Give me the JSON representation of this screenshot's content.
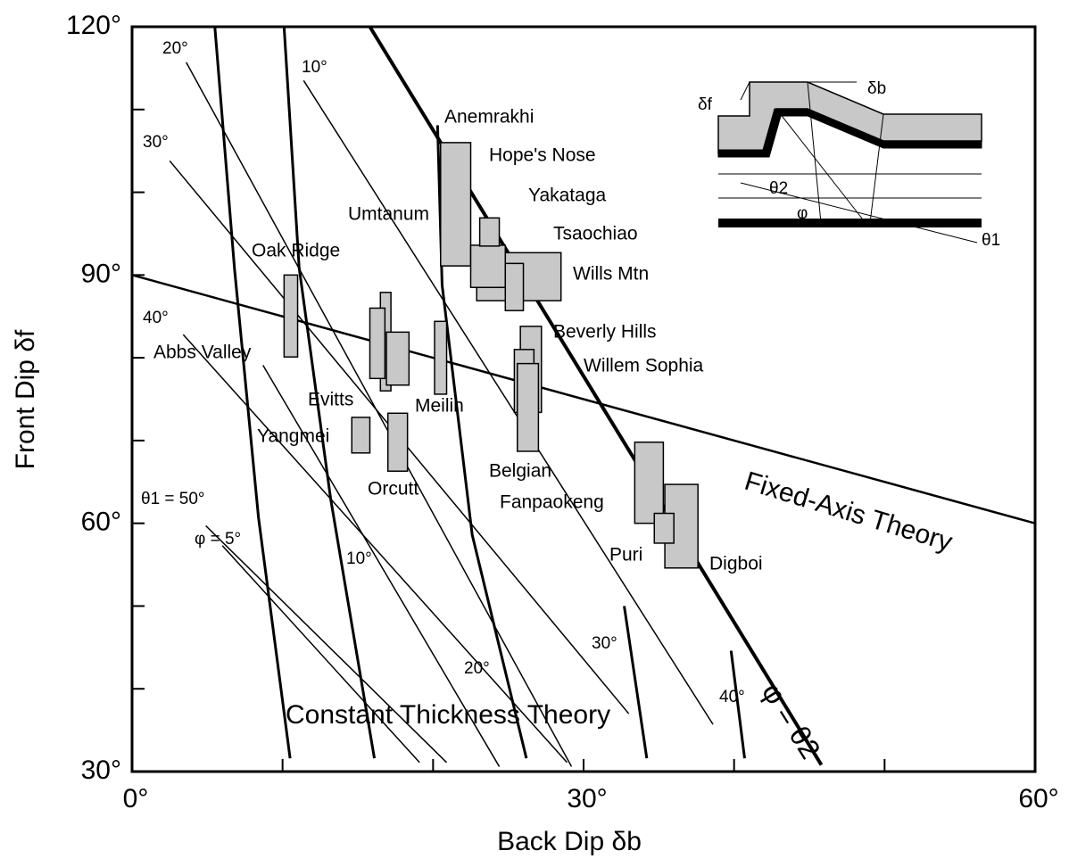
{
  "chart_data": {
    "type": "box-range",
    "xlabel": "Back Dip δb",
    "ylabel": "Front Dip δf",
    "xlim": [
      0,
      60
    ],
    "ylim": [
      30,
      120
    ],
    "xticks": [
      {
        "value": 0,
        "label": "0°"
      },
      {
        "value": 30,
        "label": "30°"
      },
      {
        "value": 60,
        "label": "60°"
      }
    ],
    "xminor_ticks": [
      10,
      20,
      40,
      50
    ],
    "yticks": [
      {
        "value": 30,
        "label": "30°"
      },
      {
        "value": 60,
        "label": "60°"
      },
      {
        "value": 90,
        "label": "90°"
      },
      {
        "value": 120,
        "label": "120°"
      }
    ],
    "yminor_ticks": [
      40,
      50,
      70,
      80,
      100,
      110
    ],
    "box_color": "#c8c8c8",
    "boxes": [
      {
        "x": [
          10.1,
          11.0
        ],
        "y": [
          80.1,
          90.0
        ]
      },
      {
        "x": [
          16.5,
          17.2
        ],
        "y": [
          76.0,
          87.9
        ]
      },
      {
        "x": [
          15.8,
          16.8
        ],
        "y": [
          77.5,
          86.0
        ]
      },
      {
        "x": [
          16.9,
          18.4
        ],
        "y": [
          76.7,
          83.1
        ]
      },
      {
        "x": [
          20.1,
          20.9
        ],
        "y": [
          75.6,
          84.4
        ]
      },
      {
        "x": [
          14.6,
          15.8
        ],
        "y": [
          68.5,
          72.8
        ]
      },
      {
        "x": [
          17.0,
          18.3
        ],
        "y": [
          66.3,
          73.3
        ]
      },
      {
        "x": [
          20.5,
          22.5
        ],
        "y": [
          91.1,
          106.0
        ]
      },
      {
        "x": [
          22.9,
          28.5
        ],
        "y": [
          86.9,
          92.7
        ]
      },
      {
        "x": [
          22.5,
          24.8
        ],
        "y": [
          88.5,
          93.6
        ]
      },
      {
        "x": [
          23.1,
          24.4
        ],
        "y": [
          93.5,
          96.9
        ]
      },
      {
        "x": [
          24.8,
          26.0
        ],
        "y": [
          85.7,
          91.4
        ]
      },
      {
        "x": [
          25.8,
          27.2
        ],
        "y": [
          73.4,
          83.8
        ]
      },
      {
        "x": [
          25.4,
          26.7
        ],
        "y": [
          73.4,
          81.0
        ]
      },
      {
        "x": [
          25.6,
          27.0
        ],
        "y": [
          68.7,
          79.3
        ]
      },
      {
        "x": [
          33.4,
          35.3
        ],
        "y": [
          60.0,
          69.8
        ]
      },
      {
        "x": [
          35.4,
          37.6
        ],
        "y": [
          54.6,
          64.7
        ]
      },
      {
        "x": [
          34.7,
          36.0
        ],
        "y": [
          57.6,
          61.2
        ]
      }
    ],
    "thick_lines": [
      {
        "x": [
          0,
          60
        ],
        "y": [
          90,
          60
        ]
      },
      {
        "x": [
          15.8,
          45.8
        ],
        "y": [
          120,
          30.8
        ]
      }
    ],
    "thin_lines": [
      {
        "x": [
          3.6,
          29.2
        ],
        "y": [
          115.7,
          30.6
        ]
      },
      {
        "x": [
          11.4,
          38.6
        ],
        "y": [
          113.5,
          35.7
        ]
      },
      {
        "x": [
          2.5,
          33.0
        ],
        "y": [
          103.8,
          37.0
        ]
      },
      {
        "x": [
          3.4,
          28.9
        ],
        "y": [
          82.8,
          31.1
        ]
      },
      {
        "x": [
          8.7,
          24.4
        ],
        "y": [
          79.1,
          30.6
        ]
      },
      {
        "x": [
          4.9,
          20.9
        ],
        "y": [
          59.7,
          31.1
        ]
      },
      {
        "x": [
          6.0,
          19.1
        ],
        "y": [
          57.3,
          31.1
        ]
      }
    ],
    "curves": [
      {
        "x": [
          5.5,
          6.8,
          8.4,
          10.5
        ],
        "y": [
          120,
          90.9,
          60.7,
          31.6
        ]
      },
      {
        "x": [
          10.1,
          11.1,
          13.2,
          16.1
        ],
        "y": [
          120,
          90.9,
          62.9,
          31.6
        ]
      },
      {
        "x": [
          20.3,
          20.6,
          22.6,
          26.2
        ],
        "y": [
          108.1,
          88.8,
          58.6,
          31.6
        ]
      },
      {
        "x": [
          32.7,
          34.2
        ],
        "y": [
          50,
          31.6
        ]
      },
      {
        "x": [
          39.8,
          40.7
        ],
        "y": [
          44.6,
          31.6
        ]
      }
    ],
    "site_labels": [
      "Anemrakhi",
      "Hope's Nose",
      "Yakataga",
      "Umtanum",
      "Tsaochiao",
      "Oak Ridge",
      "Wills Mtn",
      "Beverly Hills",
      "Abbs Valley",
      "Willem Sophia",
      "Evitts",
      "Meilin",
      "Yangmei",
      "Orcutt",
      "Belgian",
      "Fanpaokeng",
      "Puri",
      "Digboi"
    ],
    "contour_labels": [
      "20°",
      "10°",
      "30°",
      "40°",
      "10°",
      "20°",
      "30°",
      "40°",
      "θ1 = 50°",
      "φ = 5°"
    ],
    "theory_labels": [
      "Fixed-Axis Theory",
      "Constant Thickness Theory",
      "φ = θ2"
    ],
    "inset_labels": [
      "δf",
      "δb",
      "θ2",
      "φ",
      "θ1"
    ]
  }
}
